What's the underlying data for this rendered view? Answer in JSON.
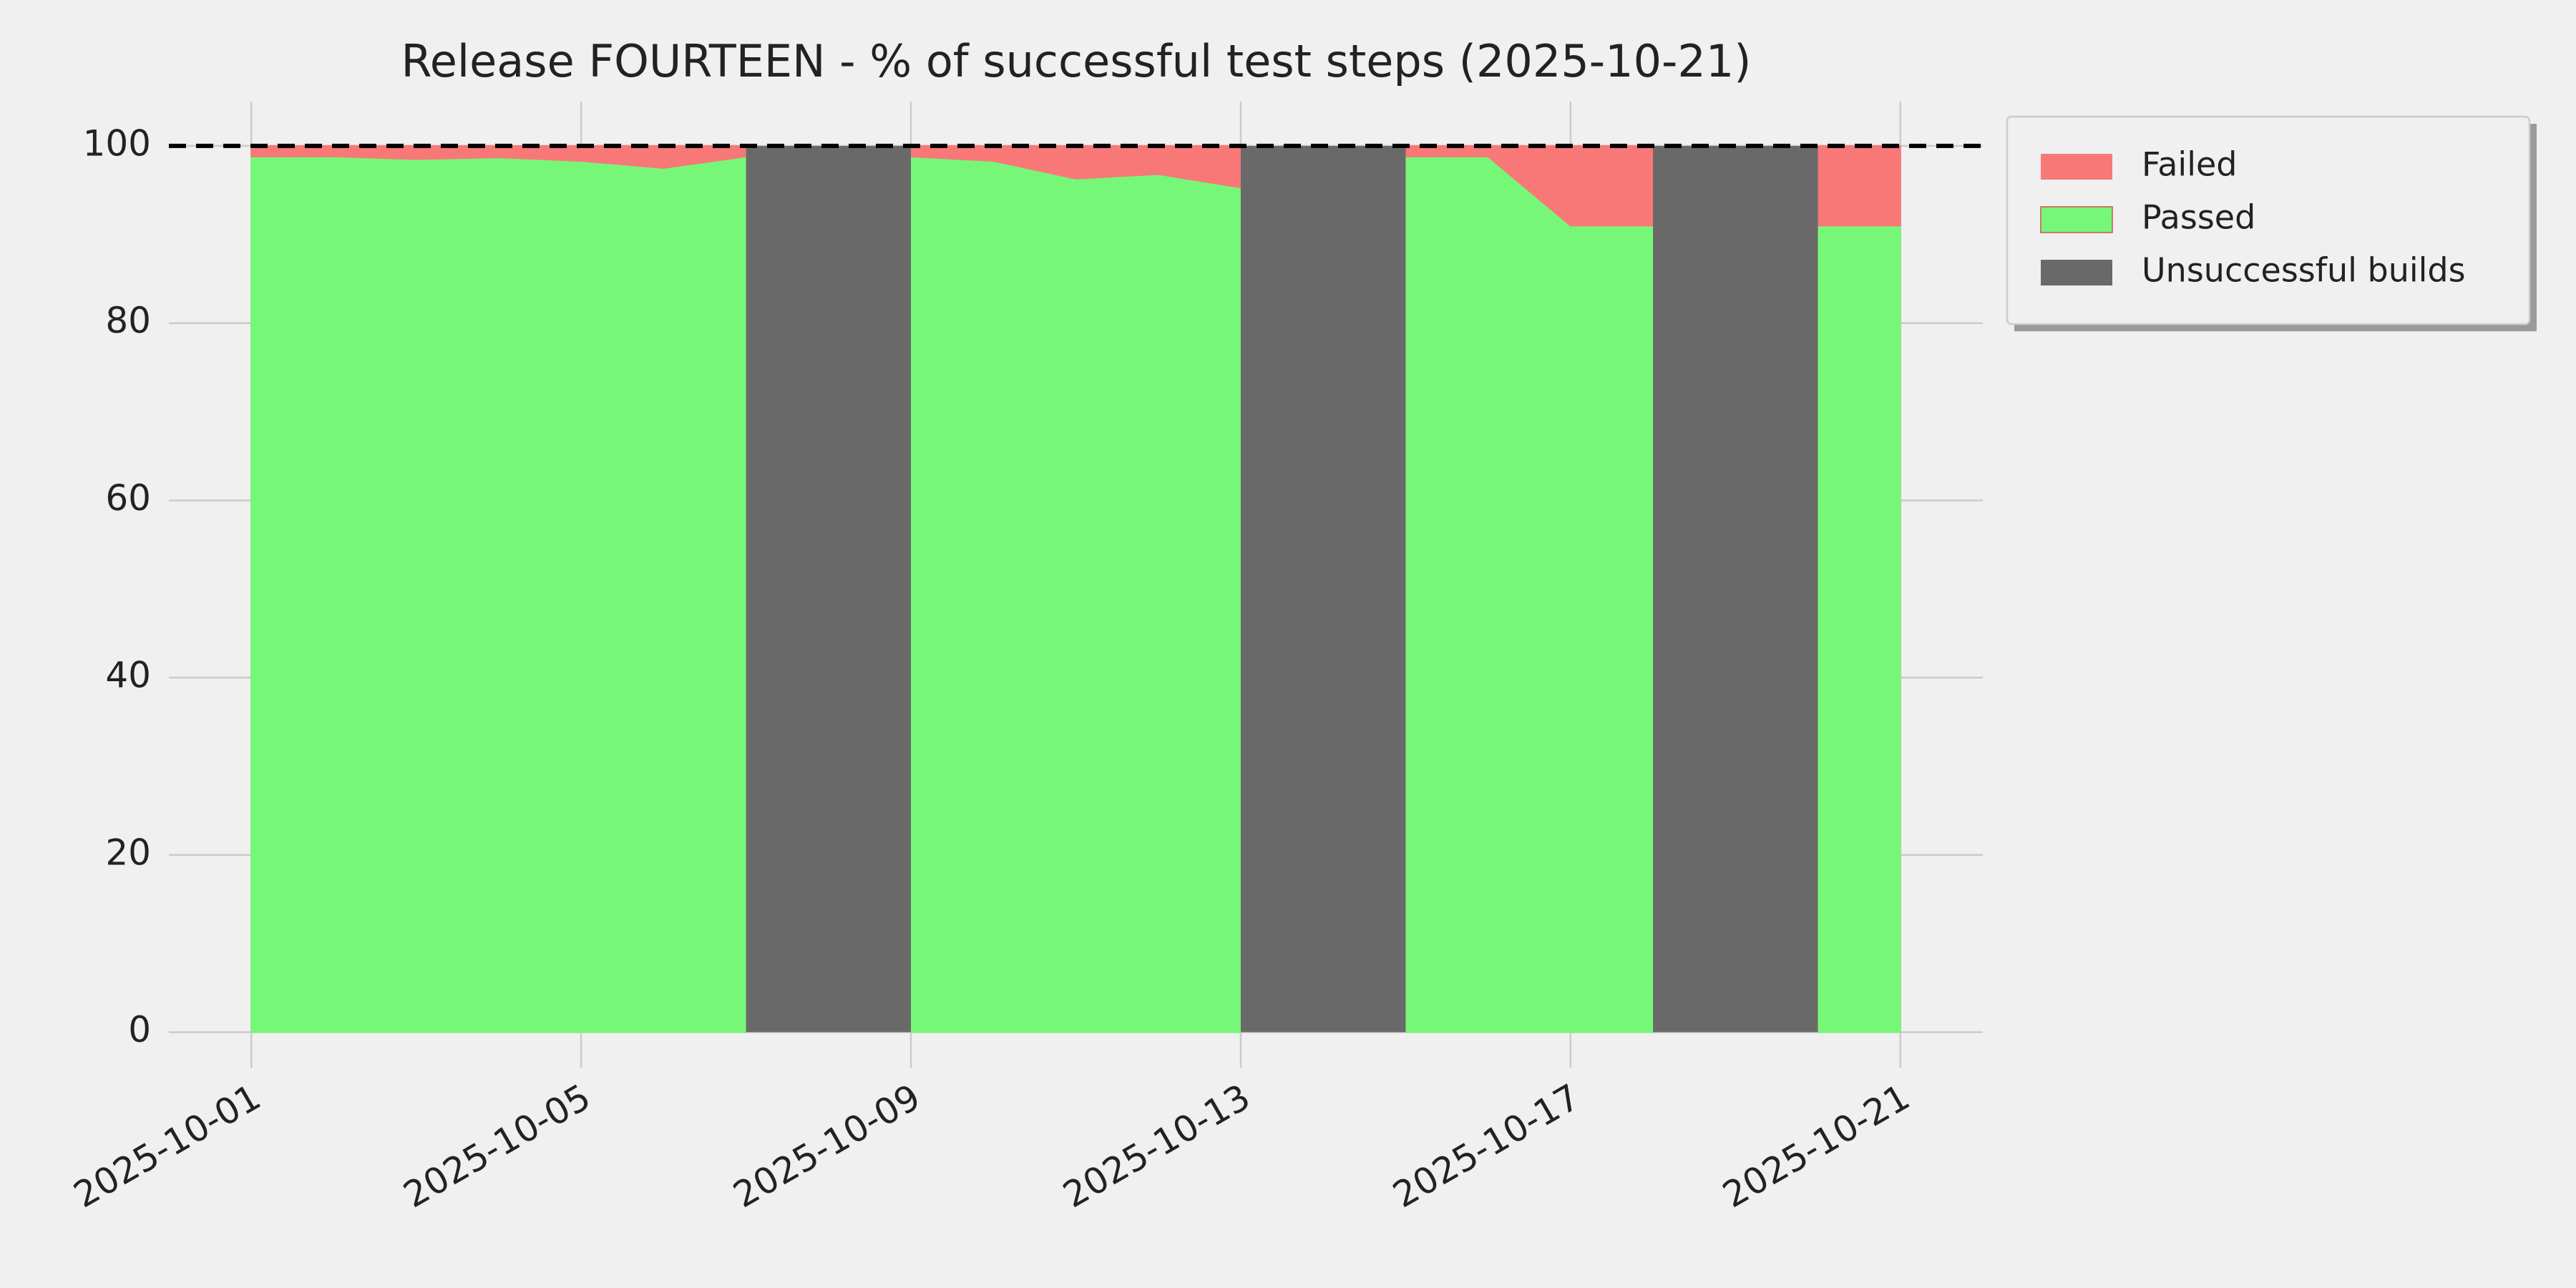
{
  "chart_data": {
    "type": "stacked_area",
    "title": "Release FOURTEEN - % of successful test steps (2025-10-21)",
    "x": [
      "2025-10-01",
      "2025-10-02",
      "2025-10-03",
      "2025-10-04",
      "2025-10-05",
      "2025-10-06",
      "2025-10-07",
      "2025-10-08",
      "2025-10-09",
      "2025-10-10",
      "2025-10-11",
      "2025-10-12",
      "2025-10-13",
      "2025-10-14",
      "2025-10-15",
      "2025-10-16",
      "2025-10-17",
      "2025-10-18",
      "2025-10-19",
      "2025-10-20",
      "2025-10-21"
    ],
    "series": [
      {
        "name": "Passed",
        "color": "#77f777",
        "values": [
          98.8,
          98.8,
          98.5,
          98.7,
          98.3,
          97.5,
          98.8,
          null,
          98.8,
          98.3,
          96.3,
          96.8,
          95.3,
          null,
          98.8,
          98.8,
          91.0,
          91.0,
          null,
          91.0,
          91.0
        ]
      },
      {
        "name": "Failed",
        "color": "#f87878",
        "values": [
          1.2,
          1.2,
          1.5,
          1.3,
          1.7,
          2.5,
          1.2,
          null,
          1.2,
          1.7,
          3.7,
          3.2,
          4.7,
          null,
          1.2,
          1.2,
          9.0,
          9.0,
          null,
          9.0,
          9.0
        ]
      },
      {
        "name": "Unsuccessful builds",
        "color": "#696969",
        "values": [
          null,
          null,
          null,
          null,
          null,
          null,
          null,
          100,
          null,
          null,
          null,
          null,
          null,
          100,
          null,
          null,
          null,
          null,
          100,
          null,
          null
        ]
      }
    ],
    "xlim": [
      "2025-09-30",
      "2025-10-22"
    ],
    "xticks": [
      "2025-10-01",
      "2025-10-05",
      "2025-10-09",
      "2025-10-13",
      "2025-10-17",
      "2025-10-21"
    ],
    "ylim": [
      -4,
      105
    ],
    "yticks": [
      0,
      20,
      40,
      60,
      80,
      100
    ],
    "reference_line": {
      "y": 100,
      "color": "#000000",
      "dashed": true
    },
    "grid": true,
    "legend": "outside upper right"
  }
}
